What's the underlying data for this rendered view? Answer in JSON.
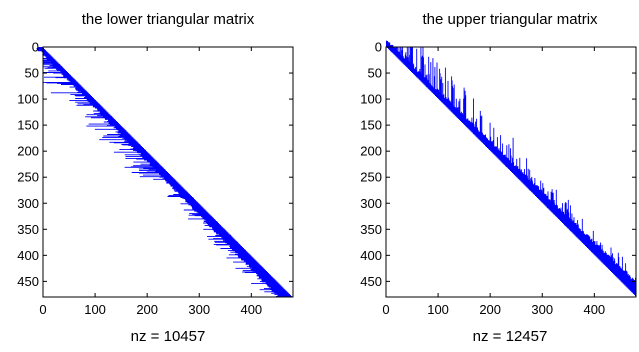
{
  "chart_data": [
    {
      "type": "spy",
      "title": "the lower triangular matrix",
      "xlabel": "nz = 10457",
      "xlim": [
        0,
        480
      ],
      "ylim": [
        0,
        480
      ],
      "y_reversed": true,
      "x_ticks": [
        0,
        100,
        200,
        300,
        400
      ],
      "y_ticks": [
        0,
        50,
        100,
        150,
        200,
        250,
        300,
        350,
        400,
        450
      ],
      "triangle": "lower",
      "matrix_size": 480,
      "nz": 10457,
      "marker_color": "#0000ff",
      "grid": false
    },
    {
      "type": "spy",
      "title": "the upper triangular matrix",
      "xlabel": "nz = 12457",
      "xlim": [
        0,
        480
      ],
      "ylim": [
        0,
        480
      ],
      "y_reversed": true,
      "x_ticks": [
        0,
        100,
        200,
        300,
        400
      ],
      "y_ticks": [
        0,
        50,
        100,
        150,
        200,
        250,
        300,
        350,
        400,
        450
      ],
      "triangle": "upper",
      "matrix_size": 480,
      "nz": 12457,
      "marker_color": "#0000ff",
      "grid": false
    }
  ]
}
